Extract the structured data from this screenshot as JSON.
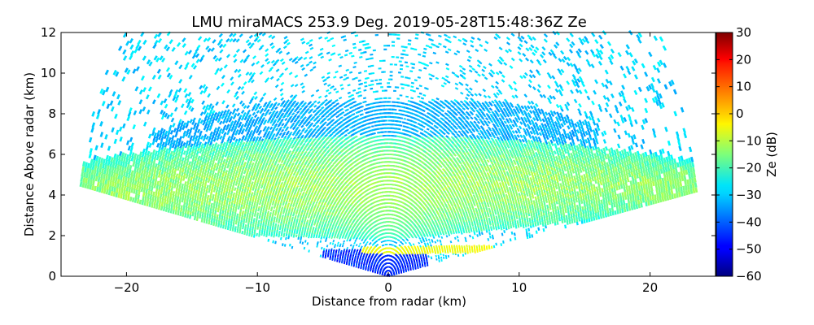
{
  "chart_data": {
    "type": "heatmap",
    "title": "LMU miraMACS 253.9 Deg. 2019-05-28T15:48:36Z  Ze",
    "xlabel": "Distance from radar (km)",
    "ylabel": "Distance Above radar  (km)",
    "xlim": [
      -25,
      25
    ],
    "ylim": [
      0,
      12
    ],
    "xticks": [
      -20,
      -10,
      0,
      10,
      20
    ],
    "yticks": [
      0,
      2,
      4,
      6,
      8,
      10,
      12
    ],
    "colorbar": {
      "label": "Ze (dB)",
      "range": [
        -60,
        30
      ],
      "ticks": [
        30,
        20,
        10,
        0,
        -10,
        -20,
        -30,
        -40,
        -50,
        -60
      ],
      "colormap": "jet"
    },
    "scan": {
      "azimuth_deg": 253.9,
      "max_range_km": 24,
      "scan_edge_right": {
        "x_km": 24,
        "y_km": 4.2
      },
      "scan_edge_left": {
        "x_km": -24,
        "y_km": 4.5
      }
    },
    "features": [
      {
        "name": "main cloud layer",
        "x_range_km": [
          -24,
          24
        ],
        "y_range_km": [
          2.0,
          6.5
        ],
        "typical_ze_db": -17,
        "peak_ze_db": -12
      },
      {
        "name": "ice cloud above",
        "x_range_km": [
          -18,
          16
        ],
        "y_range_km": [
          6.3,
          8.6
        ],
        "typical_ze_db": -33
      },
      {
        "name": "melting layer bright band",
        "x_range_km": [
          -2,
          8
        ],
        "y_range_km": [
          1.1,
          1.5
        ],
        "typical_ze_db": -5
      },
      {
        "name": "weak echo near radar",
        "x_range_km": [
          -5,
          3
        ],
        "y_range_km": [
          0,
          1.3
        ],
        "typical_ze_db": -45
      },
      {
        "name": "sparse clutter",
        "x_range_km": [
          -22,
          22
        ],
        "y_range_km": [
          0,
          12
        ],
        "typical_ze_db": -30
      }
    ]
  }
}
